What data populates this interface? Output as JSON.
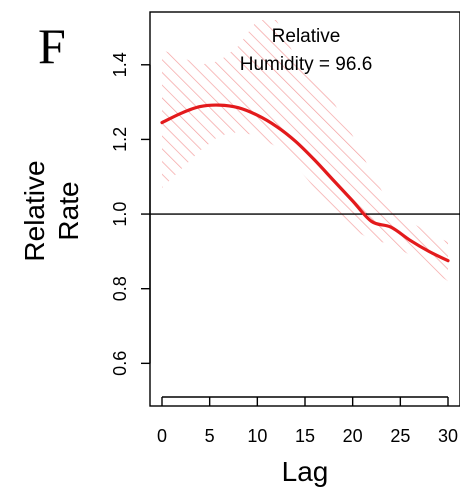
{
  "panel_label": "F",
  "chart_data": {
    "type": "line",
    "title": "",
    "annotation": [
      "Relative",
      "Humidity = 96.6"
    ],
    "xlabel": "Lag",
    "ylabel": [
      "Relative",
      "Rate"
    ],
    "xlim": [
      0,
      30
    ],
    "ylim": [
      0.55,
      1.52
    ],
    "x_ticks": [
      0,
      5,
      10,
      15,
      20,
      25,
      30
    ],
    "y_ticks": [
      0.6,
      0.8,
      1.0,
      1.2,
      1.4
    ],
    "x_tick_labels": [
      "0",
      "5",
      "10",
      "15",
      "20",
      "25",
      "30"
    ],
    "y_tick_labels": [
      "0.6",
      "0.8",
      "1.0",
      "1.2",
      "1.4"
    ],
    "reference_line": 1.0,
    "grid": false,
    "colors": {
      "line": "#e31a1c",
      "band": "#f4a0a0",
      "reference": "#000000"
    },
    "series": [
      {
        "x": [
          0,
          2,
          4,
          6,
          8,
          10,
          12,
          14,
          16,
          18,
          20,
          22,
          24,
          26,
          28,
          30
        ],
        "y": [
          1.245,
          1.27,
          1.288,
          1.292,
          1.285,
          1.265,
          1.235,
          1.195,
          1.145,
          1.09,
          1.035,
          0.98,
          0.965,
          0.93,
          0.9,
          0.875
        ],
        "lower": [
          1.07,
          1.12,
          1.17,
          1.21,
          1.22,
          1.21,
          1.18,
          1.13,
          1.07,
          1.01,
          0.96,
          0.93,
          0.92,
          0.89,
          0.855,
          0.82
        ],
        "upper": [
          1.44,
          1.42,
          1.4,
          1.41,
          1.45,
          1.52,
          1.52,
          1.42,
          1.36,
          1.3,
          1.21,
          1.11,
          1.02,
          0.98,
          0.95,
          0.925
        ]
      }
    ]
  }
}
